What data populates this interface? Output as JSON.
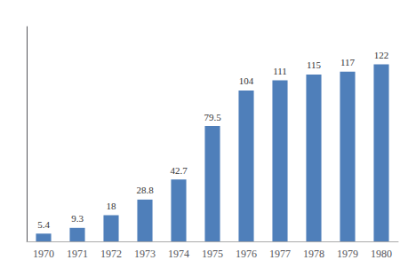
{
  "chart_data": {
    "type": "bar",
    "categories": [
      "1970",
      "1971",
      "1972",
      "1973",
      "1974",
      "1975",
      "1976",
      "1977",
      "1978",
      "1979",
      "1980"
    ],
    "values": [
      5.4,
      9.3,
      18,
      28.8,
      42.7,
      79.5,
      104,
      111,
      115,
      117,
      122
    ],
    "color": "#4f7fba",
    "ylim": [
      0,
      148
    ],
    "data_labels": true,
    "tick_labels": "x",
    "grid": false
  }
}
